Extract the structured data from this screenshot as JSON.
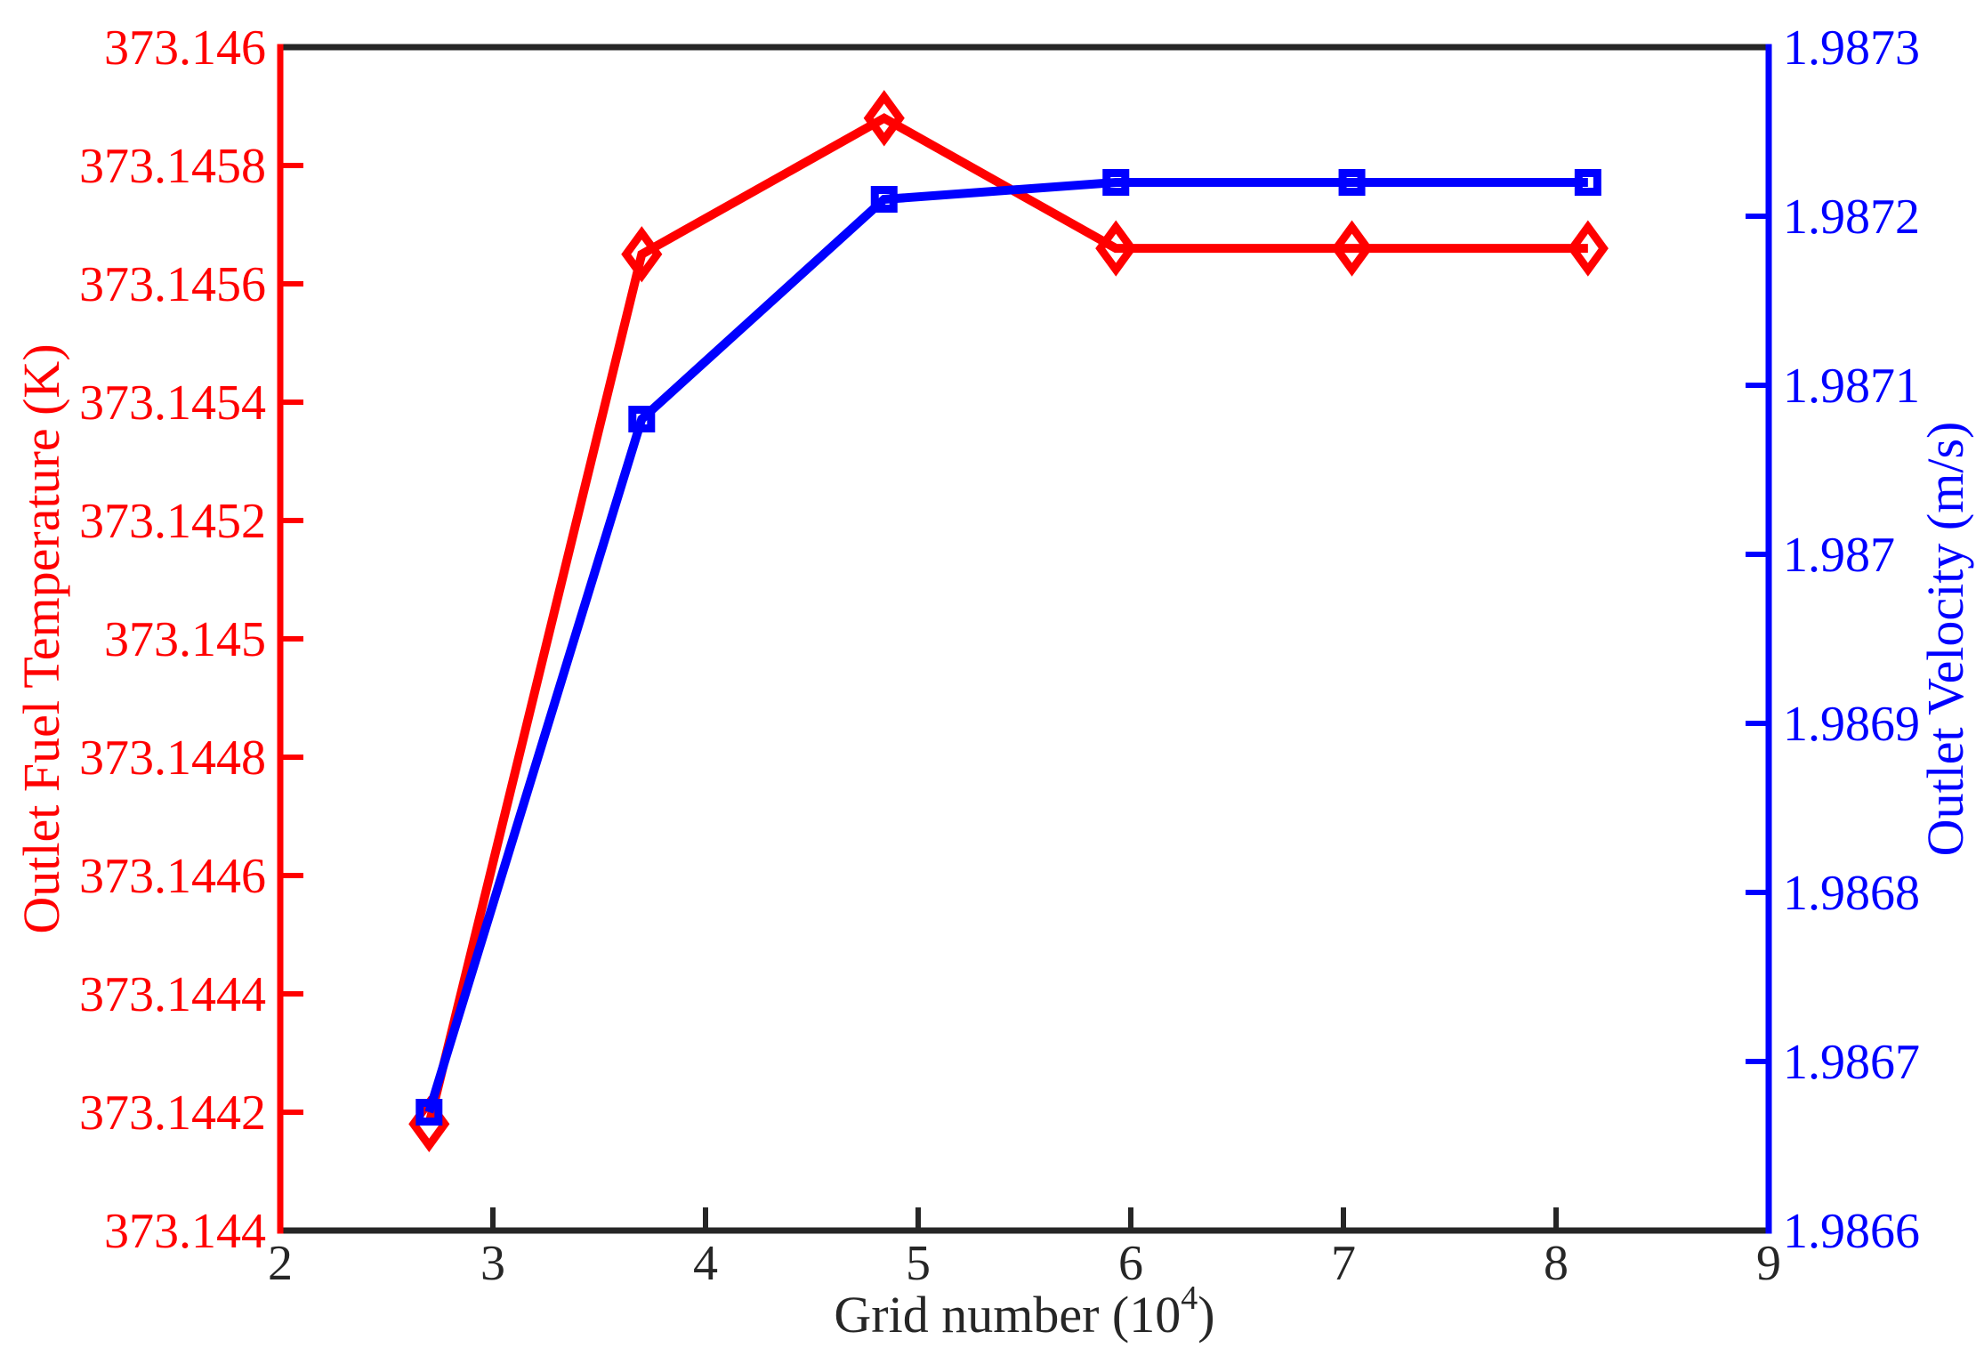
{
  "chart_data": {
    "type": "line",
    "title": "",
    "grid": false,
    "legend": null,
    "x_axis": {
      "label": "Grid number (10^4)",
      "label_parts": {
        "main": "Grid number (10",
        "sup": "4",
        "end": ")"
      },
      "lim": [
        2,
        9
      ],
      "tick_values": [
        2,
        3,
        4,
        5,
        6,
        7,
        8,
        9
      ],
      "tick_labels": [
        "2",
        "3",
        "4",
        "5",
        "6",
        "7",
        "8",
        "9"
      ],
      "color": "#262626"
    },
    "y_axis_left": {
      "label": "Outlet Fuel Temperature (K)",
      "lim": [
        373.144,
        373.146
      ],
      "tick_values": [
        373.144,
        373.1442,
        373.1444,
        373.1446,
        373.1448,
        373.145,
        373.1452,
        373.1454,
        373.1456,
        373.1458,
        373.146
      ],
      "tick_labels": [
        "373.144",
        "373.1442",
        "373.1444",
        "373.1446",
        "373.1448",
        "373.145",
        "373.1452",
        "373.1454",
        "373.1456",
        "373.1458",
        "373.146"
      ],
      "color": "#ff0000"
    },
    "y_axis_right": {
      "label": "Outlet Velocity (m/s)",
      "lim": [
        1.9866,
        1.9873
      ],
      "tick_values": [
        1.9866,
        1.9867,
        1.9868,
        1.9869,
        1.987,
        1.9871,
        1.9872,
        1.9873
      ],
      "tick_labels": [
        "1.9866",
        "1.9867",
        "1.9868",
        "1.9869",
        "1.987",
        "1.9871",
        "1.9872",
        "1.9873"
      ],
      "color": "#0000ff"
    },
    "series": [
      {
        "name": "Outlet Fuel Temperature",
        "axis": "left",
        "color": "#ff0000",
        "marker": "diamond",
        "x": [
          2.7,
          3.7,
          4.84,
          5.93,
          7.04,
          8.15
        ],
        "y": [
          373.14418,
          373.14565,
          373.14588,
          373.14566,
          373.14566,
          373.14566
        ]
      },
      {
        "name": "Outlet Velocity",
        "axis": "right",
        "color": "#0000ff",
        "marker": "square",
        "x": [
          2.7,
          3.7,
          4.84,
          5.93,
          7.04,
          8.15
        ],
        "y": [
          1.98667,
          1.98708,
          1.98721,
          1.98722,
          1.98722,
          1.98722
        ]
      }
    ]
  }
}
